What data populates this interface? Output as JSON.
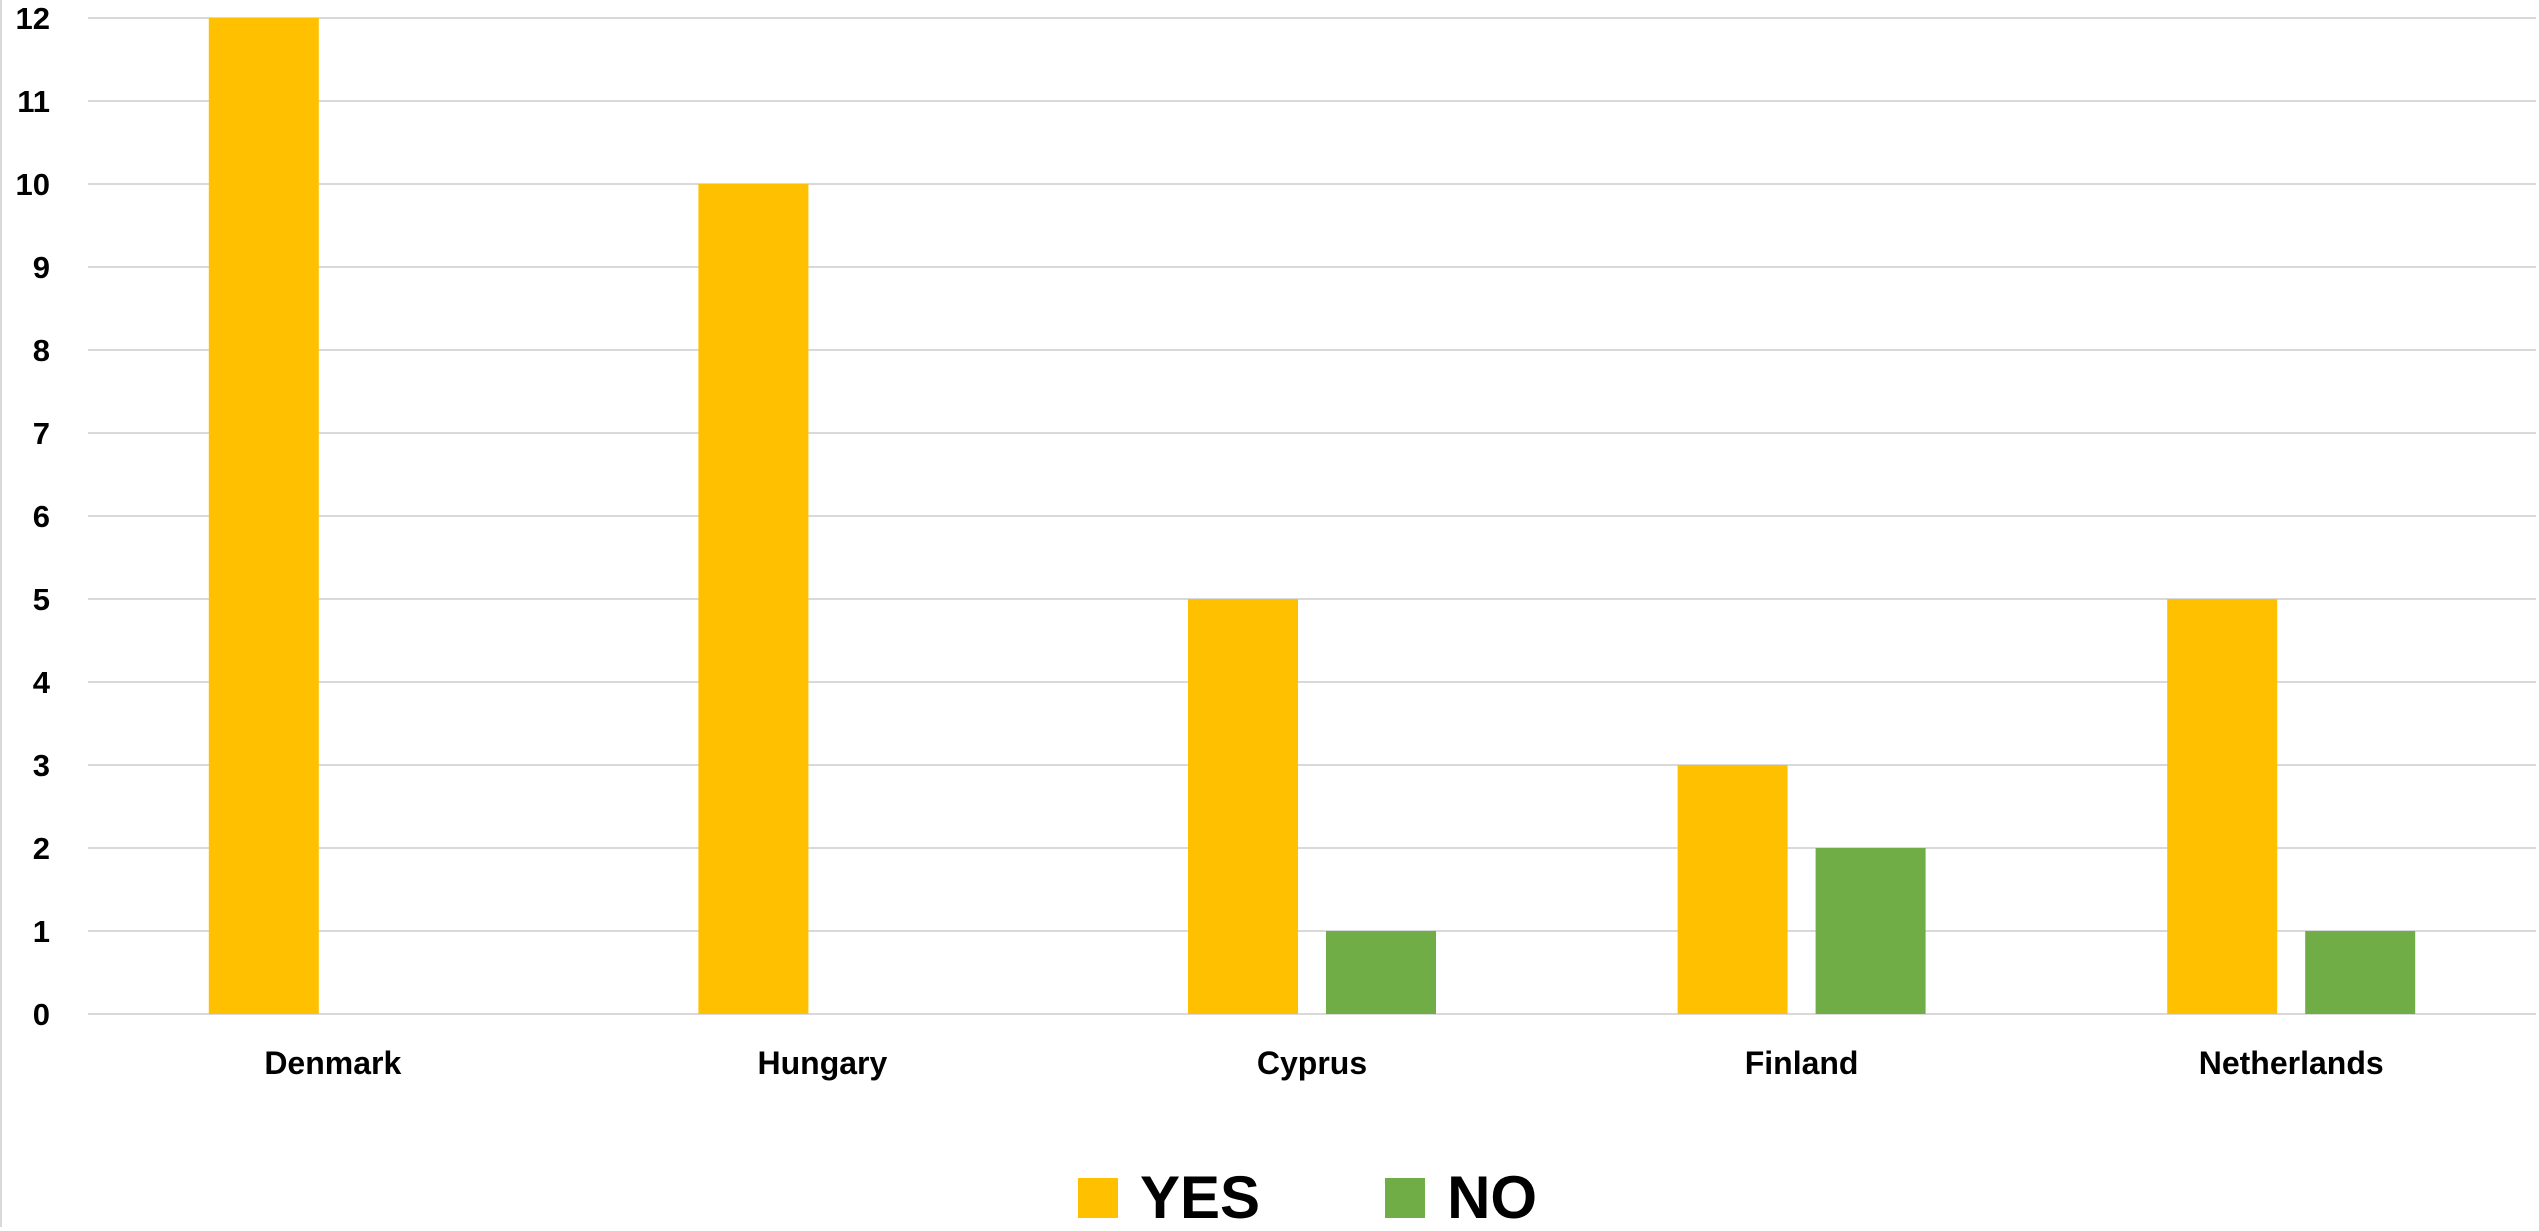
{
  "chart_data": {
    "type": "bar",
    "title": "",
    "xlabel": "",
    "ylabel": "",
    "categories": [
      "Denmark",
      "Hungary",
      "Cyprus",
      "Finland",
      "Netherlands"
    ],
    "series": [
      {
        "name": "YES",
        "color": "#ffc000",
        "values": [
          12,
          10,
          5,
          3,
          5
        ]
      },
      {
        "name": "NO",
        "color": "#70ad47",
        "values": [
          0,
          0,
          1,
          2,
          1
        ]
      }
    ],
    "ylim": [
      0,
      12
    ],
    "yticks": [
      "0",
      "1",
      "2",
      "3",
      "4",
      "5",
      "6",
      "7",
      "8",
      "9",
      "10",
      "11",
      "12"
    ],
    "grid": true,
    "legend_position": "bottom"
  }
}
